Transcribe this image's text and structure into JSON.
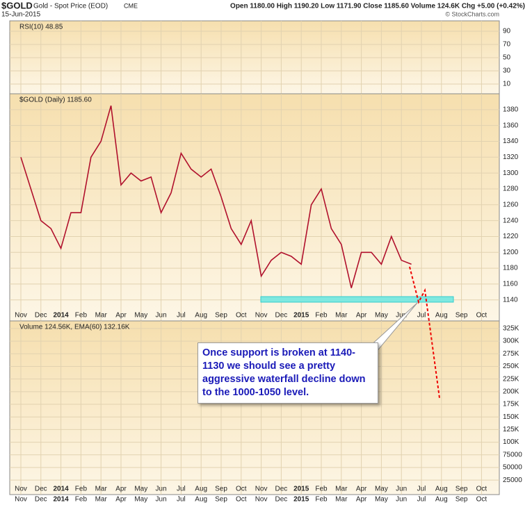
{
  "header": {
    "symbol": "$GOLD",
    "name": "Gold - Spot Price (EOD)",
    "exchange": "CME",
    "date": "15-Jun-2015",
    "quote": "Open 1180.00 High 1190.20 Low 1171.90 Close 1185.60 Volume 124.6K Chg +5.00 (+0.42%)",
    "credit": "© StockCharts.com"
  },
  "chart_data": [
    {
      "type": "line",
      "title": "RSI(10) 48.85",
      "ylim": [
        -4.7,
        105.8
      ],
      "yticks": [
        10,
        30,
        50,
        70,
        90
      ],
      "grid": true
    },
    {
      "type": "line",
      "title": "$GOLD (Daily) 1185.60",
      "categories": [
        "Nov",
        null,
        "Dec",
        null,
        "2014",
        null,
        "Feb",
        null,
        "Mar",
        null,
        "Apr",
        null,
        "May",
        null,
        "Jun",
        null,
        "Jul",
        null,
        "Aug",
        null,
        "Sep",
        null,
        "Oct",
        null,
        "Nov",
        null,
        "Dec",
        null,
        "2015",
        null,
        "Feb",
        null,
        "Mar",
        null,
        "Apr",
        null,
        "May",
        null,
        "Jun",
        null,
        "Jul",
        null,
        "Aug",
        null,
        "Sep",
        null,
        "Oct",
        null
      ],
      "series": [
        {
          "name": "$GOLD",
          "color": "#b0102c",
          "values": [
            1320,
            1280,
            1240,
            1230,
            1205,
            1250,
            1250,
            1320,
            1340,
            1385,
            1285,
            1300,
            1290,
            1295,
            1250,
            1275,
            1325,
            1305,
            1295,
            1305,
            1270,
            1230,
            1210,
            1240,
            1170,
            1190,
            1200,
            1195,
            1185,
            1260,
            1280,
            1230,
            1210,
            1155,
            1200,
            1200,
            1185,
            1220,
            1190,
            1185,
            null,
            null,
            null,
            null,
            null,
            null,
            null,
            null
          ]
        }
      ],
      "ylim": [
        1113.5,
        1400
      ],
      "yticks": [
        1140,
        1160,
        1180,
        1200,
        1220,
        1240,
        1260,
        1280,
        1300,
        1320,
        1340,
        1360,
        1380
      ],
      "grid": true,
      "annotations": [
        "Once support is broken at 1140-1130 we should see a pretty aggressive waterfall decline down to the 1000-1050 level."
      ]
    },
    {
      "type": "bar",
      "title": "Volume 124.56K, EMA(60) 132.16K",
      "ylim": [
        -3636,
        340000
      ],
      "yticks": [
        25000,
        50000,
        75000,
        {
          "value": 100000,
          "label": "100K"
        },
        {
          "value": 125000,
          "label": "125K"
        },
        {
          "value": 150000,
          "label": "150K"
        },
        {
          "value": 175000,
          "label": "175K"
        },
        {
          "value": 200000,
          "label": "200K"
        },
        {
          "value": 225000,
          "label": "225K"
        },
        {
          "value": 250000,
          "label": "250K"
        },
        {
          "value": 275000,
          "label": "275K"
        },
        {
          "value": 300000,
          "label": "300K"
        },
        {
          "value": 325000,
          "label": "325K"
        }
      ],
      "grid": true
    }
  ]
}
